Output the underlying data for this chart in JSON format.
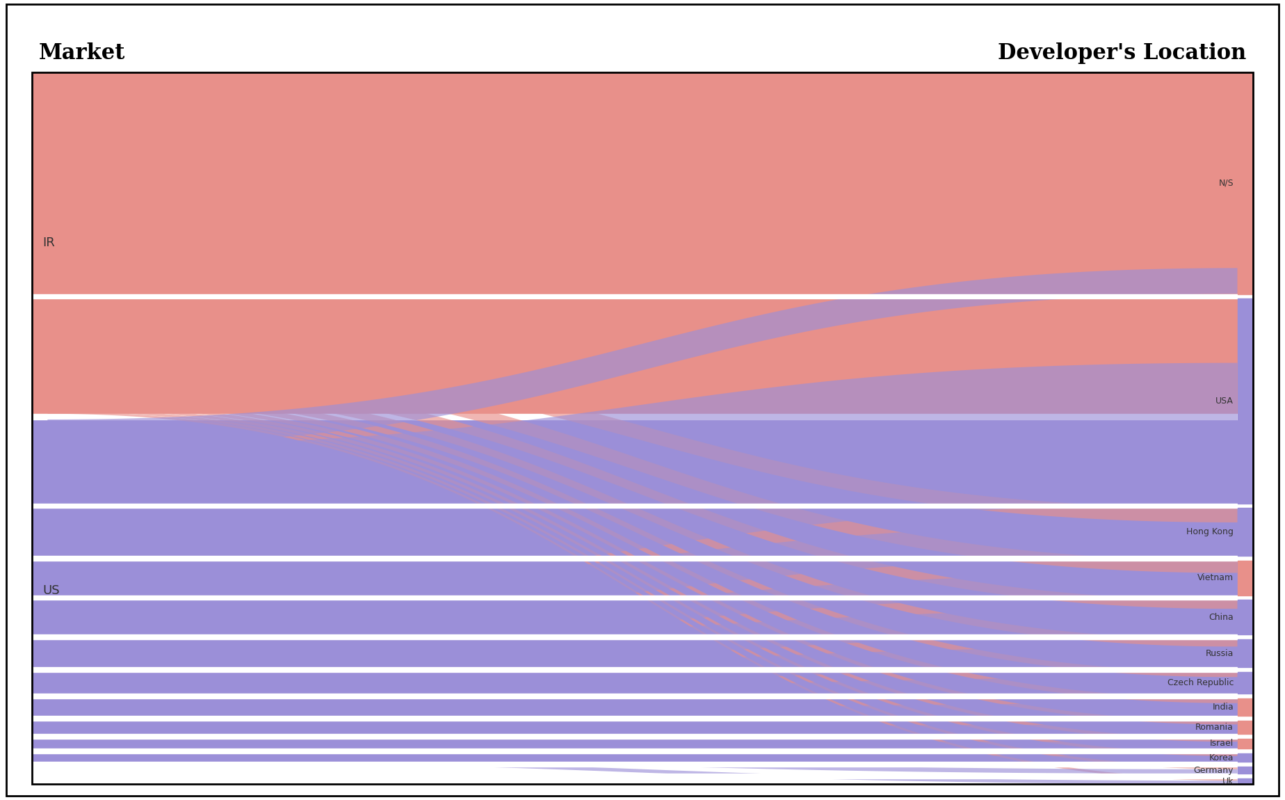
{
  "left_header": "Market",
  "right_header": "Developer's Location",
  "ir_color": "#E8908A",
  "us_color": "#9B8FD8",
  "bg_color": "#FFFFFF",
  "right_labels": [
    "N/S",
    "USA",
    "Hong Kong",
    "Vietnam",
    "China",
    "Russia",
    "Czech Republic",
    "India",
    "Romania",
    "Israel",
    "Korea",
    "Germany",
    "Uk"
  ],
  "right_colors": [
    "#E8908A",
    "#9B8FD8",
    "#9B8FD8",
    "#E8908A",
    "#9B8FD8",
    "#9B8FD8",
    "#9B8FD8",
    "#E8908A",
    "#E8908A",
    "#E8908A",
    "#9B8FD8",
    "#9B8FD8",
    "#9B8FD8"
  ],
  "flows_IR": [
    0.55,
    0.18,
    0.04,
    0.035,
    0.025,
    0.02,
    0.015,
    0.013,
    0.01,
    0.009,
    0.008,
    0.007,
    0.006
  ],
  "flows_US": [
    0.07,
    0.38,
    0.09,
    0.06,
    0.07,
    0.055,
    0.045,
    0.035,
    0.025,
    0.018,
    0.016,
    0.012,
    0.009
  ]
}
